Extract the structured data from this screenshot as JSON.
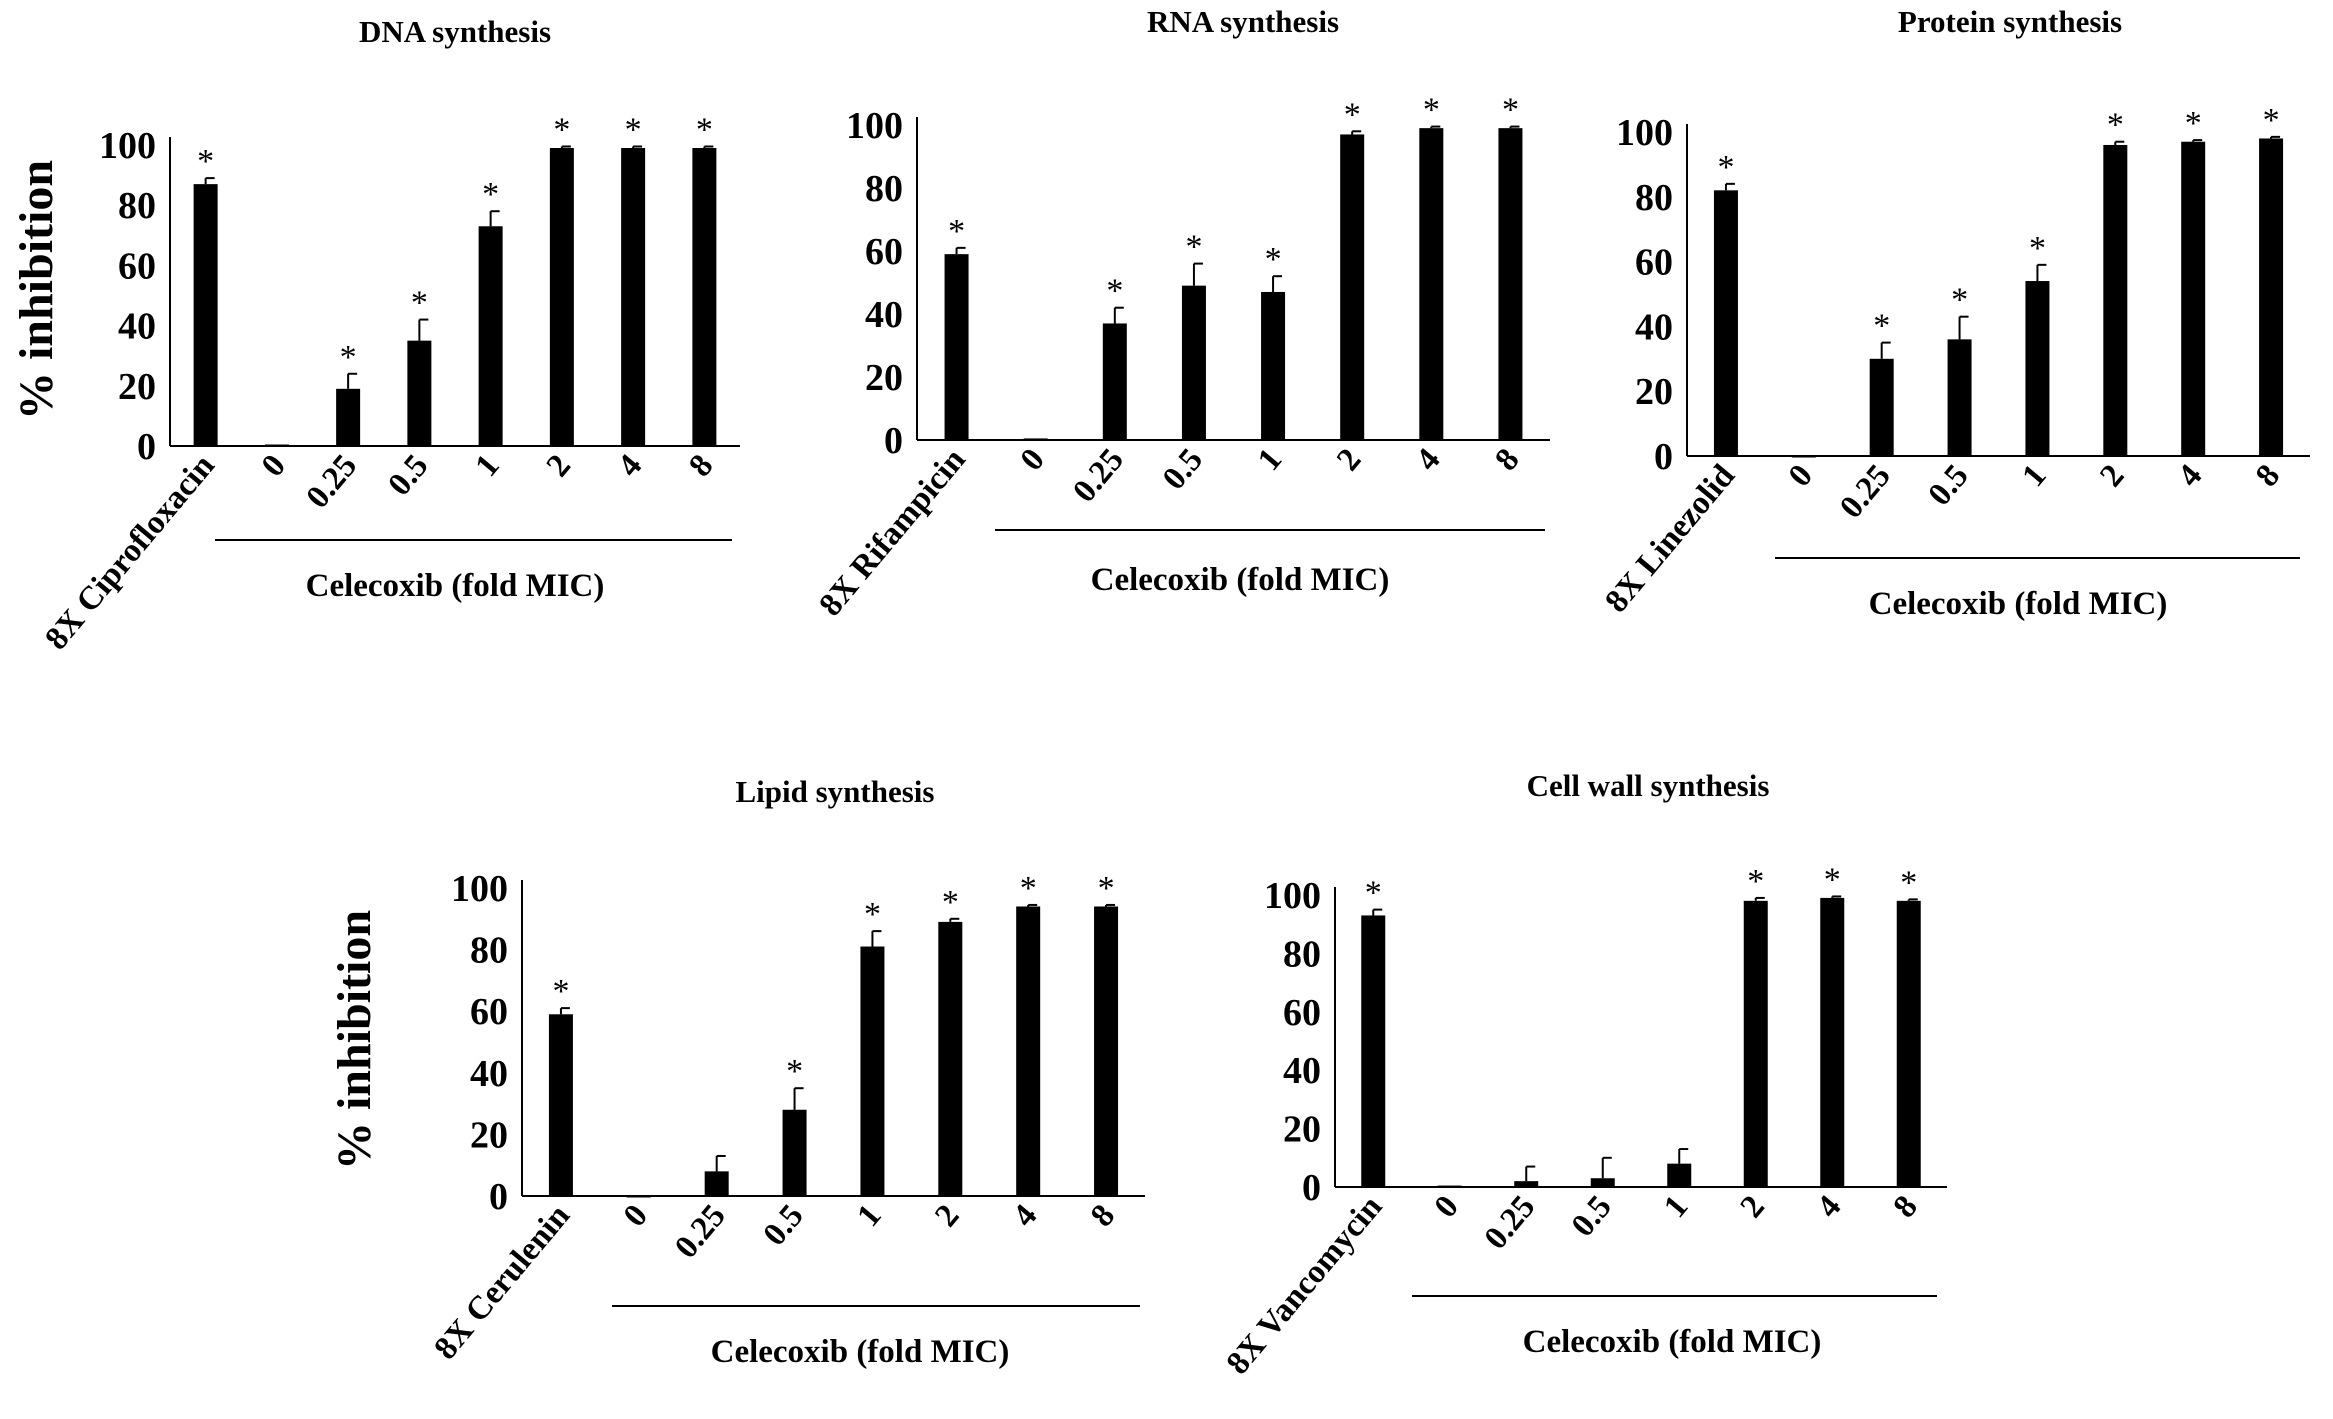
{
  "chart_data": [
    {
      "type": "bar",
      "title": "DNA synthesis",
      "ylabel": "% inhibition",
      "xlabel": "Celecoxib (fold MIC)",
      "ylim": [
        0,
        100
      ],
      "yticks": [
        "0",
        "20",
        "40",
        "60",
        "80",
        "100"
      ],
      "categories": [
        "8X Ciprofloxacin",
        "0",
        "0.25",
        "0.5",
        "1",
        "2",
        "4",
        "8"
      ],
      "values": [
        87,
        0.5,
        19,
        35,
        73,
        99,
        99,
        99
      ],
      "errors": [
        2,
        0,
        5,
        7,
        5,
        0.5,
        0.5,
        0.5
      ],
      "significance": [
        "*",
        "",
        "*",
        "*",
        "*",
        "*",
        "*",
        "*"
      ]
    },
    {
      "type": "bar",
      "title": "RNA synthesis",
      "ylabel": "",
      "xlabel": "Celecoxib (fold MIC)",
      "ylim": [
        0,
        100
      ],
      "yticks": [
        "0",
        "20",
        "40",
        "60",
        "80",
        "100"
      ],
      "categories": [
        "8X Rifampicin",
        "0",
        "0.25",
        "0.5",
        "1",
        "2",
        "4",
        "8"
      ],
      "values": [
        59,
        0.5,
        37,
        49,
        47,
        97,
        99,
        99
      ],
      "errors": [
        2,
        0,
        5,
        7,
        5,
        1,
        0.5,
        0.5
      ],
      "significance": [
        "*",
        "",
        "*",
        "*",
        "*",
        "*",
        "*",
        "*"
      ]
    },
    {
      "type": "bar",
      "title": "Protein synthesis",
      "ylabel": "",
      "xlabel": "Celecoxib (fold MIC)",
      "ylim": [
        0,
        100
      ],
      "yticks": [
        "0",
        "20",
        "40",
        "60",
        "80",
        "100"
      ],
      "categories": [
        "8X Linezolid",
        "0",
        "0.25",
        "0.5",
        "1",
        "2",
        "4",
        "8"
      ],
      "values": [
        82,
        0,
        30,
        36,
        54,
        96,
        97,
        98
      ],
      "errors": [
        2,
        0,
        5,
        7,
        5,
        1,
        0.5,
        0.5
      ],
      "significance": [
        "*",
        "",
        "*",
        "*",
        "*",
        "*",
        "*",
        "*"
      ]
    },
    {
      "type": "bar",
      "title": "Lipid synthesis",
      "ylabel": "% inhibition",
      "xlabel": "Celecoxib (fold MIC)",
      "ylim": [
        0,
        100
      ],
      "yticks": [
        "0",
        "20",
        "40",
        "60",
        "80",
        "100"
      ],
      "categories": [
        "8X Cerulenin",
        "0",
        "0.25",
        "0.5",
        "1",
        "2",
        "4",
        "8"
      ],
      "values": [
        59,
        0,
        8,
        28,
        81,
        89,
        94,
        94
      ],
      "errors": [
        2,
        0,
        5,
        7,
        5,
        1,
        0.5,
        0.5
      ],
      "significance": [
        "*",
        "",
        "",
        "*",
        "*",
        "*",
        "*",
        "*"
      ]
    },
    {
      "type": "bar",
      "title": "Cell wall synthesis",
      "ylabel": "",
      "xlabel": "Celecoxib (fold MIC)",
      "ylim": [
        0,
        100
      ],
      "yticks": [
        "0",
        "20",
        "40",
        "60",
        "80",
        "100"
      ],
      "categories": [
        "8X Vancomycin",
        "0",
        "0.25",
        "0.5",
        "1",
        "2",
        "4",
        "8"
      ],
      "values": [
        93,
        0.5,
        2,
        3,
        8,
        98,
        99,
        98
      ],
      "errors": [
        2,
        0,
        5,
        7,
        5,
        1,
        0.5,
        0.5
      ],
      "significance": [
        "*",
        "",
        "",
        "",
        "",
        "*",
        "*",
        "*"
      ]
    }
  ]
}
